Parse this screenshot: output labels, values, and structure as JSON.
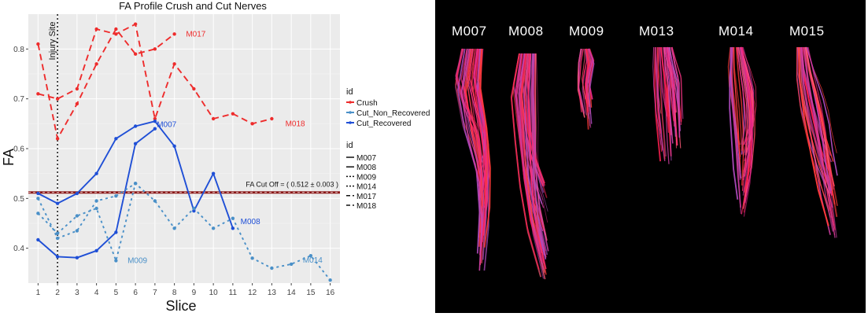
{
  "chart_data": {
    "type": "line",
    "title": "FA Profile Crush and Cut Nerves",
    "xlabel": "Slice",
    "ylabel": "FA",
    "xlim": [
      0.5,
      16.5
    ],
    "ylim": [
      0.33,
      0.87
    ],
    "x_ticks": [
      1,
      2,
      3,
      4,
      5,
      6,
      7,
      8,
      9,
      10,
      11,
      12,
      13,
      14,
      15,
      16
    ],
    "y_ticks": [
      0.4,
      0.5,
      0.6,
      0.7,
      0.8
    ],
    "grid": true,
    "background": "#ebebeb",
    "legend_position": "right",
    "legend_color": {
      "title": "id",
      "entries": [
        {
          "name": "Crush",
          "color": "#ee2c2c"
        },
        {
          "name": "Cut_Non_Recovered",
          "color": "#4a90c8"
        },
        {
          "name": "Cut_Recovered",
          "color": "#1f4fd6"
        }
      ]
    },
    "legend_linetype": {
      "title": "id",
      "entries": [
        "M007",
        "M008",
        "M009",
        "M014",
        "M017",
        "M018"
      ]
    },
    "vline": {
      "x": 2,
      "label": "Injury  Site"
    },
    "hline": {
      "y": 0.512,
      "label": "FA Cut Off = ( 0.512 ± 0.003 )",
      "color": "#8b1a1a"
    },
    "series": [
      {
        "name": "M017",
        "group": "Crush",
        "color": "#ee2c2c",
        "dash": "8,5",
        "x": [
          1,
          2,
          3,
          4,
          5,
          6,
          7,
          8
        ],
        "y": [
          0.81,
          0.62,
          0.69,
          0.77,
          0.84,
          0.79,
          0.8,
          0.83
        ]
      },
      {
        "name": "M018",
        "group": "Crush",
        "color": "#ee2c2c",
        "dash": "8,5",
        "x": [
          1,
          2,
          3,
          4,
          5,
          6,
          7,
          8,
          9,
          10,
          11,
          12,
          13
        ],
        "y": [
          0.71,
          0.7,
          0.72,
          0.84,
          0.83,
          0.85,
          0.66,
          0.77,
          0.72,
          0.66,
          0.67,
          0.65,
          0.66
        ]
      },
      {
        "name": "M007",
        "group": "Cut_Recovered",
        "color": "#1f4fd6",
        "dash": "",
        "x": [
          1,
          2,
          3,
          4,
          5,
          6,
          7,
          8,
          9,
          10,
          11
        ],
        "y": [
          0.51,
          0.49,
          0.51,
          0.55,
          0.62,
          0.645,
          0.655,
          0.605,
          0.475,
          0.55,
          0.44
        ]
      },
      {
        "name": "M008",
        "group": "Cut_Recovered",
        "color": "#1f4fd6",
        "dash": "",
        "x": [
          1,
          2,
          3,
          4,
          5,
          6,
          7
        ],
        "y": [
          0.417,
          0.383,
          0.381,
          0.395,
          0.432,
          0.61,
          0.64
        ]
      },
      {
        "name": "M009",
        "group": "Cut_Non_Recovered",
        "color": "#4a90c8",
        "dash": "3,4",
        "x": [
          1,
          2,
          3,
          4,
          5,
          6
        ],
        "y": [
          0.47,
          0.43,
          0.465,
          0.48,
          0.375,
          0.53
        ]
      },
      {
        "name": "M014",
        "group": "Cut_Non_Recovered",
        "color": "#4a90c8",
        "dash": "3,4",
        "x": [
          1,
          2,
          3,
          4,
          5,
          6,
          7,
          8,
          9,
          10,
          11,
          12,
          13,
          14,
          15,
          16
        ],
        "y": [
          0.5,
          0.42,
          0.435,
          0.495,
          0.505,
          0.53,
          0.495,
          0.44,
          0.48,
          0.44,
          0.46,
          0.38,
          0.36,
          0.368,
          0.385,
          0.336
        ]
      }
    ],
    "annotations": [
      {
        "text": "M017",
        "x": 9.1,
        "y": 0.83,
        "color": "#ee2c2c"
      },
      {
        "text": "M018",
        "x": 14.2,
        "y": 0.65,
        "color": "#ee2c2c"
      },
      {
        "text": "M007",
        "x": 7.6,
        "y": 0.648,
        "color": "#1f4fd6"
      },
      {
        "text": "M008",
        "x": 11.9,
        "y": 0.453,
        "color": "#1f4fd6"
      },
      {
        "text": "M009",
        "x": 6.1,
        "y": 0.375,
        "color": "#4a90c8"
      },
      {
        "text": "M014",
        "x": 15.1,
        "y": 0.376,
        "color": "#4a90c8"
      }
    ]
  },
  "tractography": {
    "background": "#000000",
    "subjects": [
      "M007",
      "M008",
      "M009",
      "M013",
      "M014",
      "M015"
    ]
  }
}
